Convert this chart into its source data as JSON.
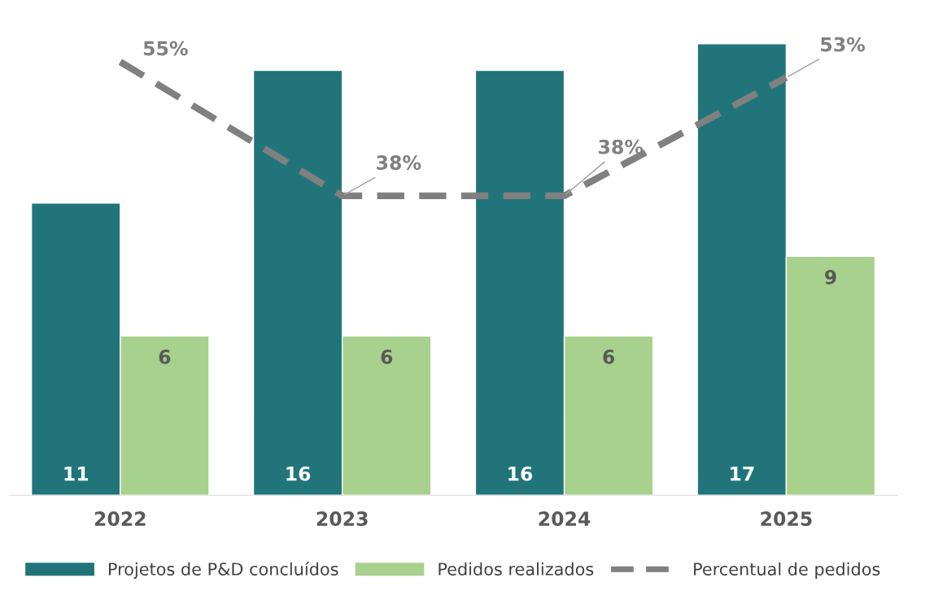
{
  "chart_data": {
    "type": "bar",
    "categories": [
      "2022",
      "2023",
      "2024",
      "2025"
    ],
    "series": [
      {
        "name": "Projetos de P&D concluídos",
        "color": "#21757a",
        "values": [
          11,
          16,
          16,
          17
        ]
      },
      {
        "name": "Pedidos realizados",
        "color": "#a8d18d",
        "values": [
          6,
          6,
          6,
          9
        ]
      },
      {
        "name": "Percentual de pedidos",
        "type": "line",
        "axis": "y2",
        "color": "#808080",
        "line_style": "dashed",
        "values": [
          55,
          38,
          38,
          53
        ],
        "value_labels": [
          "55%",
          "38%",
          "38%",
          "53%"
        ]
      }
    ],
    "tick_labels": "x",
    "data_labels": true,
    "grid": false,
    "legend": "bottom"
  }
}
